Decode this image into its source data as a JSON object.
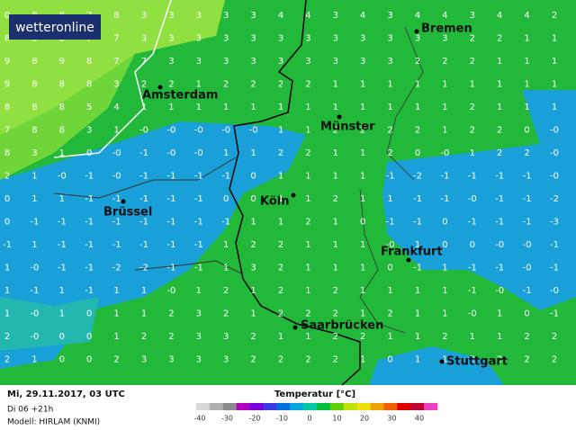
{
  "logo": "wetteronline",
  "cities": [
    "Bremen",
    "Amsterdam",
    "Münster",
    "Köln",
    "Brüssel",
    "Frankfurt",
    "Saarbrücken",
    "Stuttgart"
  ],
  "footer": {
    "date": "Mi, 29.11.2017, 03 UTC",
    "run": "Di 06 +21h",
    "model": "Modell: HIRLAM (KNMI)",
    "legend_title": "Temperatur [°C]"
  },
  "scale": {
    "labels": [
      -40,
      -30,
      -20,
      -10,
      0,
      10,
      20,
      30,
      40
    ],
    "colors": [
      "#d8d8d8",
      "#b0b0b0",
      "#8a8a8a",
      "#b000c0",
      "#7a00e0",
      "#3a3ae0",
      "#0070e0",
      "#00a8e0",
      "#00c8a0",
      "#00c040",
      "#60d000",
      "#c0e000",
      "#f0e000",
      "#f0a000",
      "#f06000",
      "#e00000",
      "#c00030",
      "#f040c0"
    ]
  },
  "grid": {
    "rows": [
      [
        "0",
        "8",
        "8",
        "7",
        "8",
        "3",
        "3",
        "3",
        "3",
        "3",
        "4",
        "4",
        "3",
        "4",
        "3",
        "4",
        "4",
        "3",
        "4",
        "4",
        "2"
      ],
      [
        "8",
        "8",
        "8",
        "7",
        "7",
        "3",
        "3",
        "3",
        "3",
        "3",
        "3",
        "3",
        "3",
        "3",
        "3",
        "3",
        "3",
        "2",
        "2",
        "1",
        "1"
      ],
      [
        "9",
        "8",
        "9",
        "8",
        "7",
        "7",
        "3",
        "3",
        "3",
        "3",
        "3",
        "3",
        "3",
        "3",
        "3",
        "2",
        "2",
        "2",
        "1",
        "1",
        "1"
      ],
      [
        "9",
        "8",
        "8",
        "8",
        "3",
        "2",
        "2",
        "1",
        "2",
        "2",
        "2",
        "2",
        "1",
        "1",
        "1",
        "1",
        "1",
        "1",
        "1",
        "1",
        "1"
      ],
      [
        "8",
        "8",
        "8",
        "5",
        "4",
        "1",
        "1",
        "1",
        "1",
        "1",
        "1",
        "1",
        "1",
        "1",
        "1",
        "1",
        "1",
        "2",
        "1",
        "1",
        "1"
      ],
      [
        "7",
        "8",
        "8",
        "3",
        "1",
        "-0",
        "-0",
        "-0",
        "-0",
        "-0",
        "1",
        "1",
        "2",
        "2",
        "2",
        "2",
        "1",
        "2",
        "2",
        "0",
        "-0"
      ],
      [
        "8",
        "3",
        "1",
        "0",
        "-0",
        "-1",
        "-0",
        "-0",
        "1",
        "1",
        "2",
        "2",
        "1",
        "1",
        "2",
        "0",
        "-0",
        "1",
        "2",
        "2",
        "-0"
      ],
      [
        "2",
        "1",
        "-0",
        "-1",
        "-0",
        "-1",
        "-1",
        "-1",
        "-1",
        "0",
        "1",
        "1",
        "1",
        "1",
        "-1",
        "-2",
        "-1",
        "-1",
        "-1",
        "-1",
        "-0"
      ],
      [
        "0",
        "1",
        "1",
        "-1",
        "-1",
        "-1",
        "-1",
        "-1",
        "0",
        "0",
        "1",
        "1",
        "2",
        "1",
        "1",
        "-1",
        "-1",
        "-0",
        "-1",
        "-1",
        "-2"
      ],
      [
        "0",
        "-1",
        "-1",
        "-1",
        "-1",
        "-1",
        "-1",
        "-1",
        "-1",
        "1",
        "1",
        "2",
        "1",
        "0",
        "-1",
        "-1",
        "0",
        "-1",
        "-1",
        "-1",
        "-3"
      ],
      [
        "-1",
        "1",
        "-1",
        "-1",
        "-1",
        "-1",
        "-1",
        "-1",
        "1",
        "2",
        "2",
        "1",
        "1",
        "1",
        "-0",
        "1",
        "0",
        "0",
        "-0",
        "-0",
        "-1"
      ],
      [
        "1",
        "-0",
        "-1",
        "-1",
        "-2",
        "-2",
        "-1",
        "-1",
        "1",
        "3",
        "2",
        "1",
        "1",
        "1",
        "0",
        "-1",
        "1",
        "-1",
        "-1",
        "-0",
        "-1"
      ],
      [
        "1",
        "-1",
        "1",
        "-1",
        "1",
        "1",
        "-0",
        "1",
        "2",
        "1",
        "2",
        "1",
        "2",
        "1",
        "1",
        "1",
        "1",
        "-1",
        "-0",
        "-1",
        "-0"
      ],
      [
        "1",
        "-0",
        "1",
        "0",
        "1",
        "1",
        "2",
        "3",
        "2",
        "1",
        "2",
        "2",
        "2",
        "1",
        "2",
        "1",
        "1",
        "-0",
        "1",
        "0",
        "-1"
      ],
      [
        "2",
        "-0",
        "0",
        "0",
        "1",
        "2",
        "2",
        "3",
        "3",
        "2",
        "1",
        "1",
        "2",
        "2",
        "1",
        "1",
        "2",
        "1",
        "1",
        "2",
        "2"
      ],
      [
        "2",
        "1",
        "0",
        "0",
        "2",
        "3",
        "3",
        "3",
        "3",
        "2",
        "2",
        "2",
        "2",
        "1",
        "0",
        "1",
        "1",
        "2",
        "2",
        "2",
        "2"
      ]
    ]
  }
}
